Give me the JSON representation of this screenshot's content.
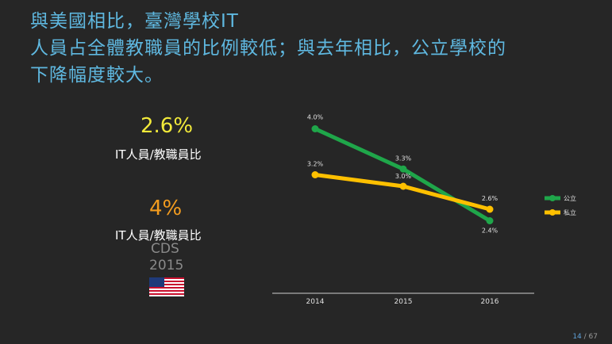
{
  "title": {
    "lines": [
      "與美國相比，臺灣學校IT",
      "人員占全體教職員的比例較低；與去年相比，公立學校的",
      "下降幅度較大。"
    ]
  },
  "taiwan": {
    "value": "2.6%",
    "label": "IT人員/教職員比",
    "color": "#f2ea3a"
  },
  "us": {
    "value": "4%",
    "label": "IT人員/教職員比",
    "source": "CDS",
    "year": "2015",
    "color": "#f39c1f",
    "flag_icon": "us-flag-icon"
  },
  "chart_data": {
    "type": "line",
    "x": [
      "2014",
      "2015",
      "2016"
    ],
    "series": [
      {
        "name": "公立",
        "color": "#1fa64a",
        "values": [
          4.0,
          3.3,
          2.4
        ],
        "labels": [
          "4.0%",
          "3.3%",
          "2.4%"
        ]
      },
      {
        "name": "私立",
        "color": "#ffc000",
        "values": [
          3.2,
          3.0,
          2.6
        ],
        "labels": [
          "3.2%",
          "3.0%",
          "2.6%"
        ]
      }
    ],
    "legend": "right",
    "grid": false
  },
  "page": {
    "current": "14",
    "total": "/ 67"
  }
}
